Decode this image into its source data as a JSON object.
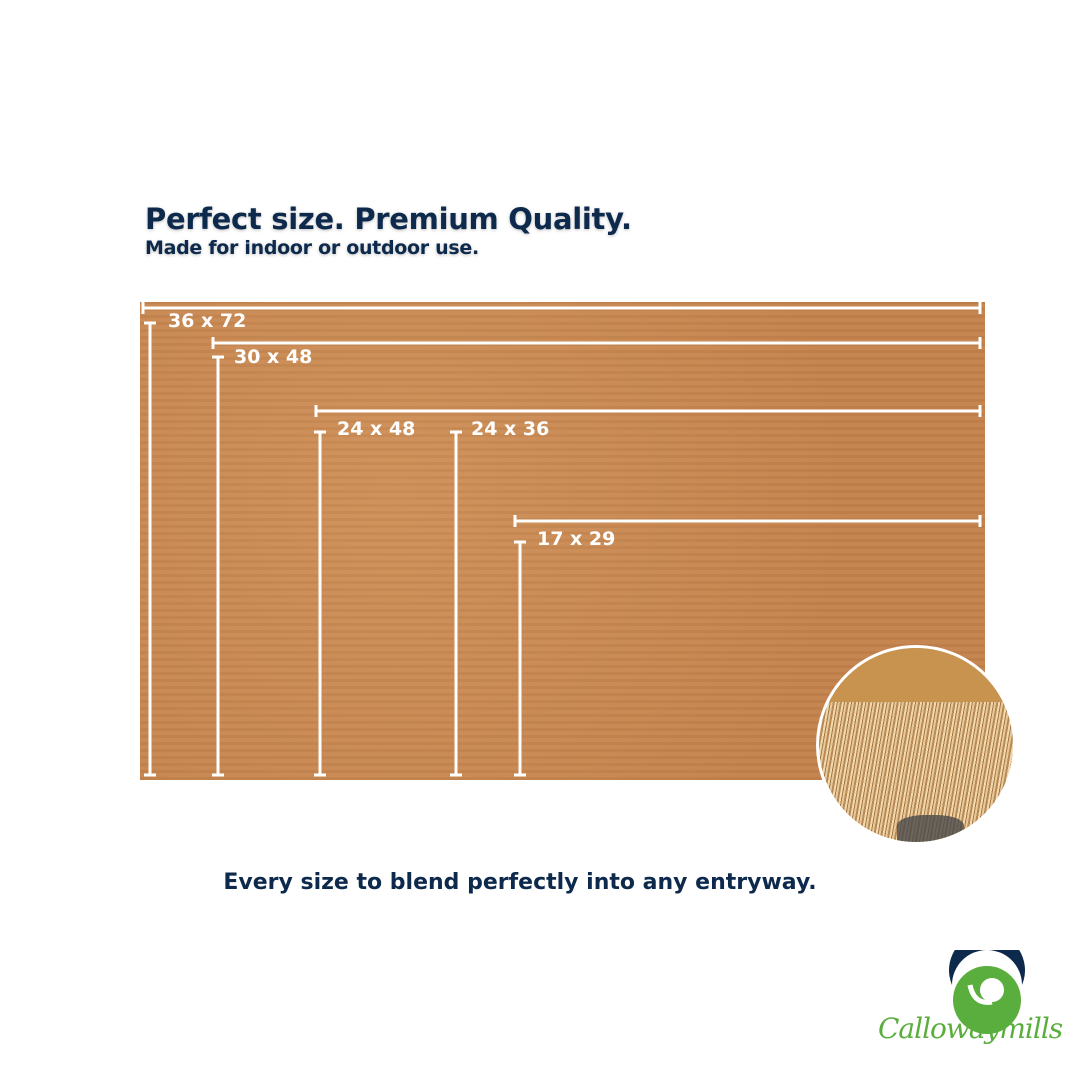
{
  "headline": "Perfect size. Premium Quality.",
  "subheadline": "Made for indoor or outdoor use.",
  "sizes": [
    "36 x 72",
    "30 x 48",
    "24 x 48",
    "24 x 36",
    "17 x 29"
  ],
  "tagline": "Every size to blend perfectly into any entryway.",
  "brand": "Callowaymills",
  "colors": {
    "navy": "#0d2a4d",
    "green": "#5aae3d",
    "mat": "#c88650"
  }
}
